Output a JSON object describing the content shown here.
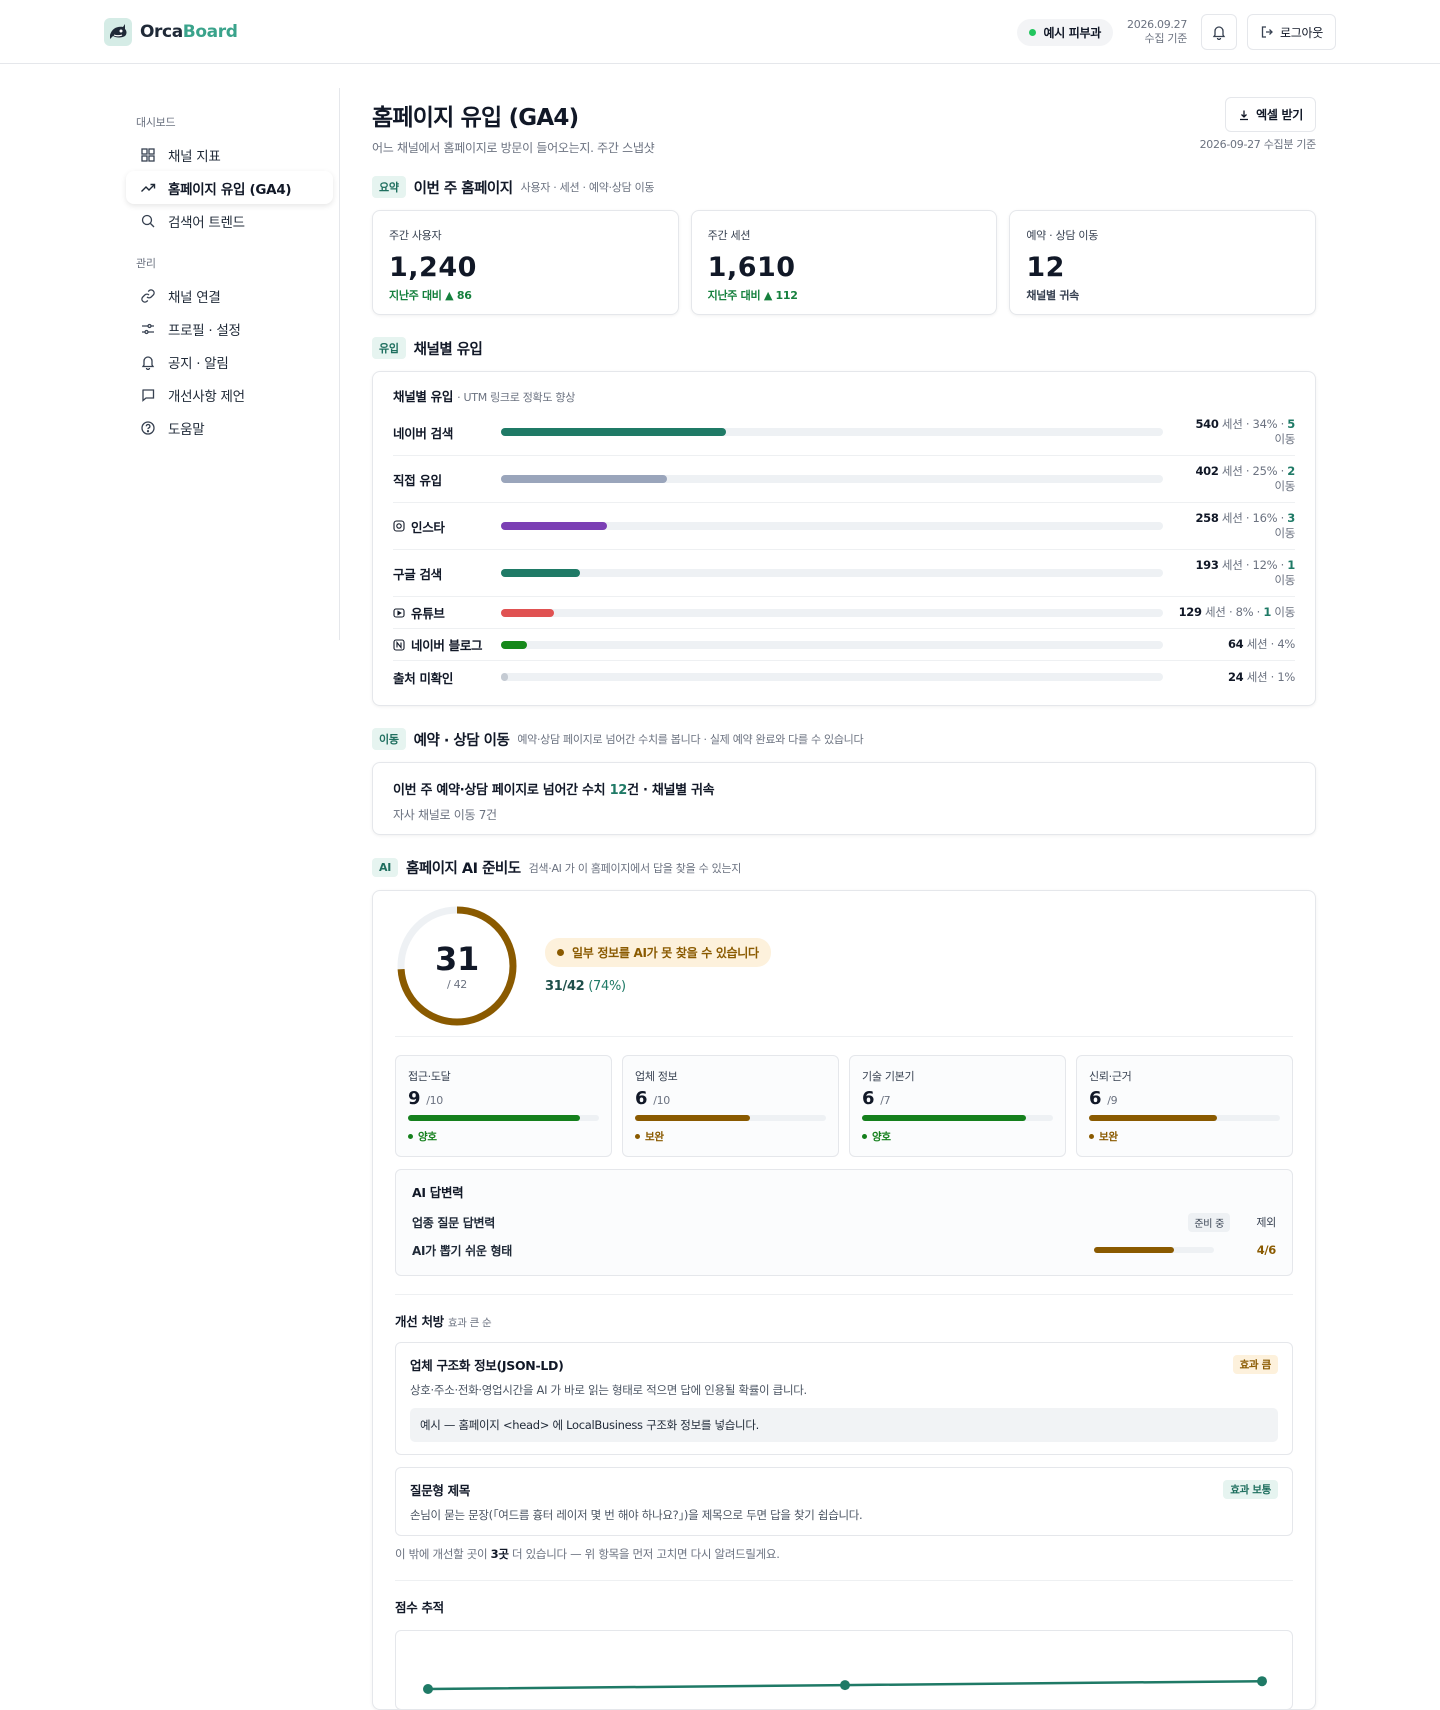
{
  "header": {
    "brand_a": "Orca",
    "brand_b": "Board",
    "clinic": "예시 피부과",
    "date": "2026.09.27",
    "date_sub": "수집 기준",
    "logout": "로그아웃"
  },
  "sidebar": {
    "group1": "대시보드",
    "group2": "관리",
    "items": [
      {
        "label": "채널 지표",
        "icon": "grid-icon"
      },
      {
        "label": "홈페이지 유입 (GA4)",
        "icon": "trend-icon",
        "active": true
      },
      {
        "label": "검색어 트렌드",
        "icon": "search-icon"
      },
      {
        "label": "채널 연결",
        "icon": "link-icon"
      },
      {
        "label": "프로필 · 설정",
        "icon": "sliders-icon"
      },
      {
        "label": "공지 · 알림",
        "icon": "bell-icon"
      },
      {
        "label": "개선사항 제언",
        "icon": "chat-icon"
      },
      {
        "label": "도움말",
        "icon": "help-icon"
      }
    ]
  },
  "page": {
    "title": "홈페이지 유입 (GA4)",
    "subtitle": "어느 채널에서 홈페이지로 방문이 들어오는지. 주간 스냅샷",
    "excel": "엑셀 받기",
    "stamp": "2026-09-27 수집분 기준"
  },
  "summary": {
    "tag": "요약",
    "title": "이번 주 홈페이지",
    "desc": "사용자 · 세션 · 예약·상담 이동",
    "kpis": [
      {
        "label": "주간 사용자",
        "value": "1,240",
        "delta": "지난주 대비 ▲ 86"
      },
      {
        "label": "주간 세션",
        "value": "1,610",
        "delta": "지난주 대비 ▲ 112"
      },
      {
        "label": "예약 · 상담 이동",
        "value": "12",
        "delta": "채널별 귀속"
      }
    ]
  },
  "inflow": {
    "tag": "유입",
    "title": "채널별 유입",
    "card_title": "채널별 유입",
    "card_note": "· UTM 링크로 정확도 향상",
    "channels": [
      {
        "name": "네이버 검색",
        "icon": "",
        "sessions": "540",
        "share": "34%",
        "moves": "5",
        "pct": 0.34,
        "color": "#1f7a66"
      },
      {
        "name": "직접 유입",
        "icon": "",
        "sessions": "402",
        "share": "25%",
        "moves": "2",
        "pct": 0.25,
        "color": "#9aa5bb"
      },
      {
        "name": "인스타",
        "icon": "instagram-icon",
        "sessions": "258",
        "share": "16%",
        "moves": "3",
        "pct": 0.16,
        "color": "#7b3fb4"
      },
      {
        "name": "구글 검색",
        "icon": "",
        "sessions": "193",
        "share": "12%",
        "moves": "1",
        "pct": 0.12,
        "color": "#1f7a66"
      },
      {
        "name": "유튜브",
        "icon": "youtube-icon",
        "sessions": "129",
        "share": "8%",
        "moves": "1",
        "pct": 0.08,
        "color": "#e05252"
      },
      {
        "name": "네이버 블로그",
        "icon": "naver-blog-icon",
        "sessions": "64",
        "share": "4%",
        "moves": "",
        "pct": 0.04,
        "color": "#15881a"
      },
      {
        "name": "출처 미확인",
        "icon": "",
        "sessions": "24",
        "share": "1%",
        "moves": "",
        "pct": 0.01,
        "color": "#c5cbd3"
      }
    ],
    "unit_sessions": "세션",
    "unit_moves": "이동"
  },
  "moves": {
    "tag": "이동",
    "title": "예약 · 상담 이동",
    "desc": "예약·상담 페이지로 넘어간 수치를 봅니다 · 실제 예약 완료와 다를 수 있습니다",
    "line1_a": "이번 주 예약·상담 페이지로 넘어간 수치 ",
    "line1_num": "12",
    "line1_b": "건 · 채널별 귀속",
    "line2": "자사 채널로 이동 7건"
  },
  "ai": {
    "tag": "AI",
    "title": "홈페이지 AI 준비도",
    "desc": "검색·AI 가 이 홈페이지에서 답을 찾을 수 있는지",
    "score": "31",
    "max": "/ 42",
    "score_pct": 0.74,
    "warning": "일부 정보를 AI가 못 찾을 수 있습니다",
    "ratio": "31/42",
    "ratio_pct": "(74%)",
    "categories": [
      {
        "name": "접근·도달",
        "score": "9",
        "max": "/10",
        "pct": 0.9,
        "status": "양호",
        "color": "#15801d"
      },
      {
        "name": "업체 정보",
        "score": "6",
        "max": "/10",
        "pct": 0.6,
        "status": "보완",
        "color": "#8a5a00"
      },
      {
        "name": "기술 기본기",
        "score": "6",
        "max": "/7",
        "pct": 0.86,
        "status": "양호",
        "color": "#15801d"
      },
      {
        "name": "신뢰·근거",
        "score": "6",
        "max": "/9",
        "pct": 0.67,
        "status": "보완",
        "color": "#8a5a00"
      }
    ],
    "answer": {
      "title": "AI 답변력",
      "row1": "업종 질문 답변력",
      "row1_chip": "준비 중",
      "row1_excl": "제외",
      "row2": "AI가 뽑기 쉬운 형태",
      "row2_frac": "4/6",
      "row2_pct": 0.67
    },
    "rx_title": "개선 처방",
    "rx_sub": "효과 큰 순",
    "rx": [
      {
        "title": "업체 구조화 정보(JSON-LD)",
        "badge": "효과 큼",
        "desc": "상호·주소·전화·영업시간을 AI 가 바로 읽는 형태로 적으면 답에 인용될 확률이 큽니다.",
        "example": "예시 — 홈페이지 <head> 에 LocalBusiness 구조화 정보를 넣습니다."
      },
      {
        "title": "질문형 제목",
        "badge": "효과 보통",
        "desc": "손님이 묻는 문장(「여드름 흉터 레이저 몇 번 해야 하나요?」)을 제목으로 두면 답을 찾기 쉽습니다."
      }
    ],
    "more_a": "이 밖에 개선할 곳이 ",
    "more_num": "3곳",
    "more_b": " 더 있습니다 — 위 항목을 먼저 고치면 다시 알려드릴게요.",
    "trend_title": "점수 추적",
    "trend_values": [
      28,
      29.5,
      31
    ]
  }
}
